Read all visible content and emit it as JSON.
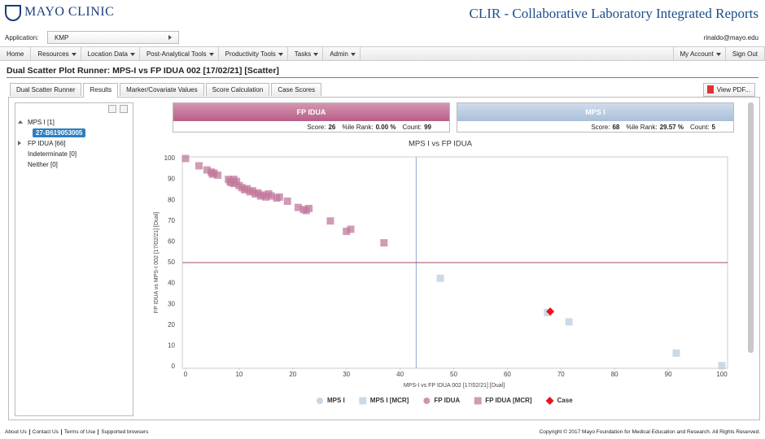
{
  "header": {
    "logo": "MAYO CLINIC",
    "title": "CLIR - Collaborative Laboratory Integrated Reports"
  },
  "app_bar": {
    "label": "Application:",
    "selected": "KMP",
    "user": "rinaldo@mayo.edu"
  },
  "nav": {
    "left": [
      "Home",
      "Resources",
      "Location Data",
      "Post-Analytical Tools",
      "Productivity Tools",
      "Tasks",
      "Admin"
    ],
    "right": [
      "My Account",
      "Sign Out"
    ]
  },
  "page_title": "Dual Scatter Plot Runner: MPS-I vs FP IDUA 002 [17/02/21] [Scatter]",
  "tabs": {
    "items": [
      "Dual Scatter Runner",
      "Results",
      "Marker/Covariate Values",
      "Score Calculation",
      "Case Scores"
    ],
    "active": 1,
    "pdf_button": "View PDF..."
  },
  "tree": {
    "groups": [
      "MPS I [1]",
      "FP IDUA [66]",
      "Indeterminate [0]",
      "Neither [0]"
    ],
    "selected": "27-B619053005"
  },
  "score_boxes": [
    {
      "title": "FP IDUA",
      "fields": [
        {
          "label": "Score:",
          "value": 26
        },
        {
          "label": "%ile Rank:",
          "value": "0.00 %"
        },
        {
          "label": "Count:",
          "value": 99
        }
      ]
    },
    {
      "title": "MPS I",
      "fields": [
        {
          "label": "Score:",
          "value": 68
        },
        {
          "label": "%ile Rank:",
          "value": "29.57 %"
        },
        {
          "label": "Count:",
          "value": 5
        }
      ]
    }
  ],
  "chart_data": {
    "type": "scatter",
    "title": "MPS I vs FP IDUA",
    "x_label": "MPS-I vs FP IDUA 002 [17/02/21] [Dual]",
    "y_label": "FP IDUA vs MPS-I 002 [17/02/21] [Dual]",
    "xlim": [
      0,
      100
    ],
    "ylim": [
      0,
      100
    ],
    "xticks": [
      0,
      10,
      20,
      30,
      40,
      50,
      60,
      70,
      80,
      90,
      100
    ],
    "yticks": [
      0,
      10,
      20,
      30,
      40,
      50,
      60,
      70,
      80,
      90,
      100
    ],
    "reference_lines": {
      "x": 43,
      "x_color": "#8fa9cc",
      "y": 50,
      "y_color": "#a04a6a"
    },
    "series": [
      {
        "name": "MPS I",
        "color": "#b9cde2",
        "marker": "circle",
        "x": [],
        "y": []
      },
      {
        "name": "MPS I [MCR]",
        "color": "#b9cde2",
        "marker": "square",
        "x": [
          47.5,
          67.5,
          71.5,
          91.5,
          100
        ],
        "y": [
          42.5,
          26,
          21.5,
          6.5,
          0.5
        ]
      },
      {
        "name": "FP IDUA",
        "color": "#c27a9c",
        "marker": "circle",
        "x": [],
        "y": []
      },
      {
        "name": "FP IDUA [MCR]",
        "color": "#c27a9c",
        "marker": "square",
        "x": [
          0,
          2.5,
          4,
          4.8,
          5,
          5.3,
          6,
          8,
          8.3,
          8.5,
          9,
          9,
          9.5,
          10,
          10.5,
          11,
          11.5,
          12,
          12.5,
          13,
          13.5,
          14,
          14.5,
          15,
          15.5,
          16,
          17,
          17.5,
          19,
          21,
          22,
          22.5,
          23,
          27,
          30,
          30.8,
          37
        ],
        "y": [
          100,
          96.5,
          94.5,
          93.5,
          92.5,
          93,
          92,
          90,
          89,
          88.5,
          90,
          88,
          89,
          87,
          86,
          85,
          85.5,
          84,
          84.5,
          83,
          83.5,
          82,
          82.5,
          81.5,
          83,
          82,
          81,
          81.5,
          79.5,
          76.5,
          75.5,
          75,
          76,
          70,
          65,
          66,
          59.5
        ]
      },
      {
        "name": "Case",
        "color": "#e8141e",
        "marker": "diamond",
        "x": [
          68
        ],
        "y": [
          26.5
        ]
      }
    ]
  },
  "footer": {
    "links": [
      "About Us",
      "Contact Us",
      "Terms of Use",
      "Supported browsers"
    ],
    "copyright": "Copyright © 2017 Mayo Foundation for Medical Education and Research. All Rights Reserved."
  }
}
